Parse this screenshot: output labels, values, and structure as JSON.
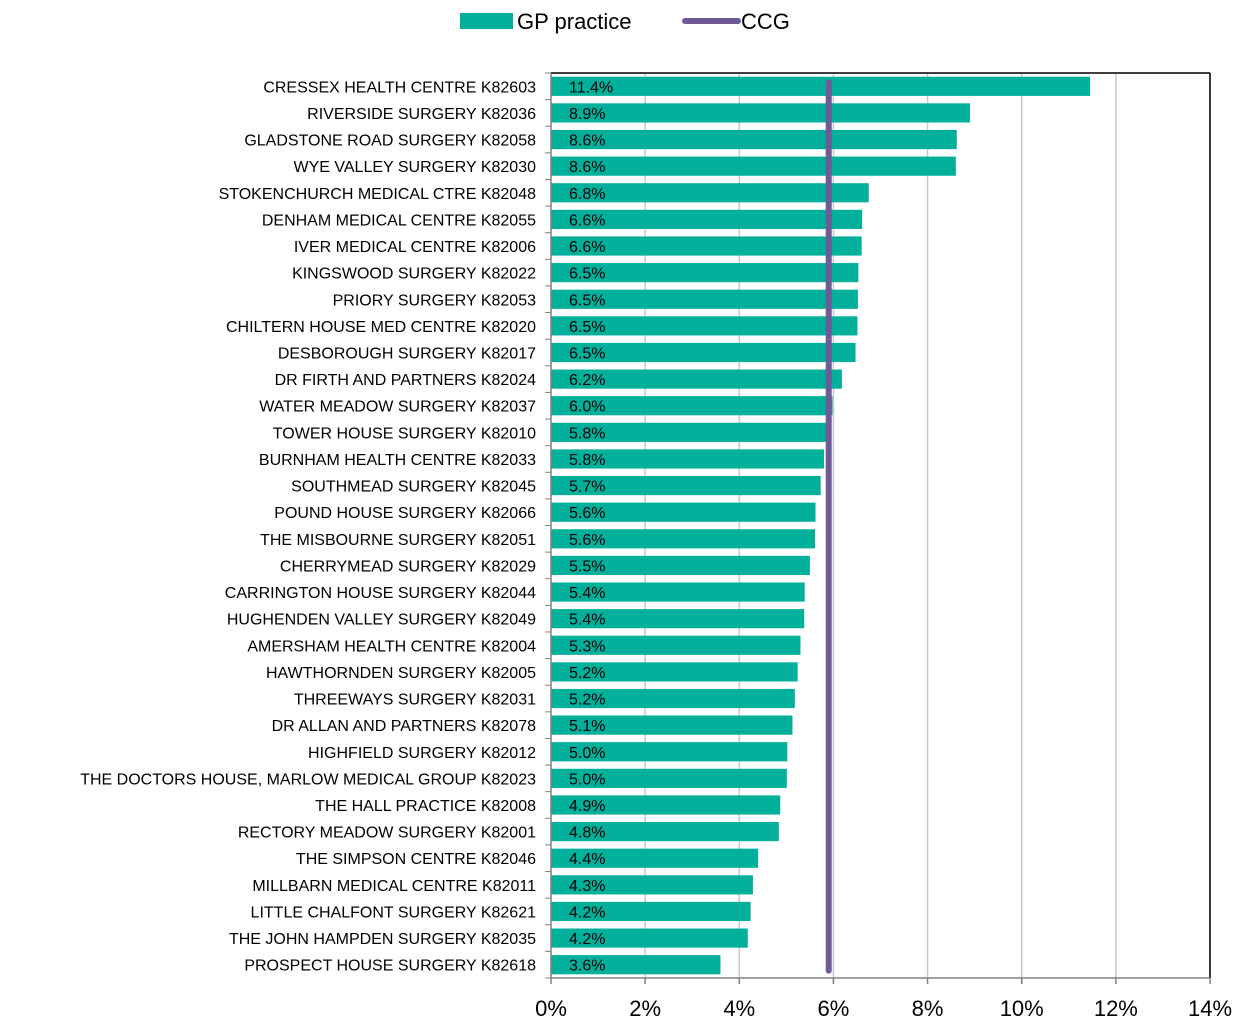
{
  "legend": {
    "items": [
      {
        "label": "GP practice",
        "kind": "bar",
        "color": "#00B09B"
      },
      {
        "label": "CCG",
        "kind": "line",
        "color": "#6F5A99"
      }
    ]
  },
  "chart_data": {
    "type": "bar",
    "orientation": "horizontal",
    "categories": [
      "CRESSEX HEALTH CENTRE K82603",
      "RIVERSIDE SURGERY K82036",
      "GLADSTONE ROAD SURGERY K82058",
      "WYE VALLEY SURGERY K82030",
      "STOKENCHURCH MEDICAL CTRE K82048",
      "DENHAM MEDICAL CENTRE K82055",
      "IVER MEDICAL CENTRE K82006",
      "KINGSWOOD SURGERY K82022",
      "PRIORY SURGERY K82053",
      "CHILTERN HOUSE MED CENTRE K82020",
      "DESBOROUGH SURGERY K82017",
      "DR FIRTH AND PARTNERS K82024",
      "WATER MEADOW SURGERY K82037",
      "TOWER HOUSE SURGERY K82010",
      "BURNHAM HEALTH CENTRE K82033",
      "SOUTHMEAD SURGERY K82045",
      "POUND HOUSE SURGERY K82066",
      "THE MISBOURNE SURGERY K82051",
      "CHERRYMEAD SURGERY K82029",
      "CARRINGTON HOUSE SURGERY K82044",
      "HUGHENDEN VALLEY SURGERY K82049",
      "AMERSHAM HEALTH CENTRE K82004",
      "HAWTHORNDEN SURGERY K82005",
      "THREEWAYS SURGERY K82031",
      "DR ALLAN AND PARTNERS K82078",
      "HIGHFIELD SURGERY K82012",
      "THE DOCTORS HOUSE, MARLOW MEDICAL GROUP K82023",
      "THE HALL PRACTICE K82008",
      "RECTORY MEADOW SURGERY K82001",
      "THE SIMPSON CENTRE K82046",
      "MILLBARN MEDICAL CENTRE K82011",
      "LITTLE CHALFONT SURGERY K82621",
      "THE JOHN HAMPDEN SURGERY K82035",
      "PROSPECT HOUSE SURGERY K82618"
    ],
    "series": [
      {
        "name": "GP practice",
        "values": [
          11.45,
          8.9,
          8.62,
          8.6,
          6.75,
          6.61,
          6.6,
          6.53,
          6.52,
          6.51,
          6.47,
          6.18,
          5.98,
          5.85,
          5.8,
          5.73,
          5.62,
          5.61,
          5.5,
          5.39,
          5.38,
          5.3,
          5.24,
          5.18,
          5.13,
          5.02,
          5.01,
          4.87,
          4.84,
          4.4,
          4.29,
          4.24,
          4.18,
          3.6
        ],
        "labels": [
          "11.4%",
          "8.9%",
          "8.6%",
          "8.6%",
          "6.8%",
          "6.6%",
          "6.6%",
          "6.5%",
          "6.5%",
          "6.5%",
          "6.5%",
          "6.2%",
          "6.0%",
          "5.8%",
          "5.8%",
          "5.7%",
          "5.6%",
          "5.6%",
          "5.5%",
          "5.4%",
          "5.4%",
          "5.3%",
          "5.2%",
          "5.2%",
          "5.1%",
          "5.0%",
          "5.0%",
          "4.9%",
          "4.8%",
          "4.4%",
          "4.3%",
          "4.2%",
          "4.2%",
          "3.6%"
        ],
        "color": "#00B09B"
      }
    ],
    "reference_line": {
      "name": "CCG",
      "value": 5.9,
      "color": "#6F5A99"
    },
    "xlim": [
      0,
      14
    ],
    "xticks": [
      0,
      2,
      4,
      6,
      8,
      10,
      12,
      14
    ],
    "xtick_labels": [
      "0%",
      "2%",
      "4%",
      "6%",
      "8%",
      "10%",
      "12%",
      "14%"
    ],
    "grid": "vertical",
    "legend_position": "top"
  }
}
